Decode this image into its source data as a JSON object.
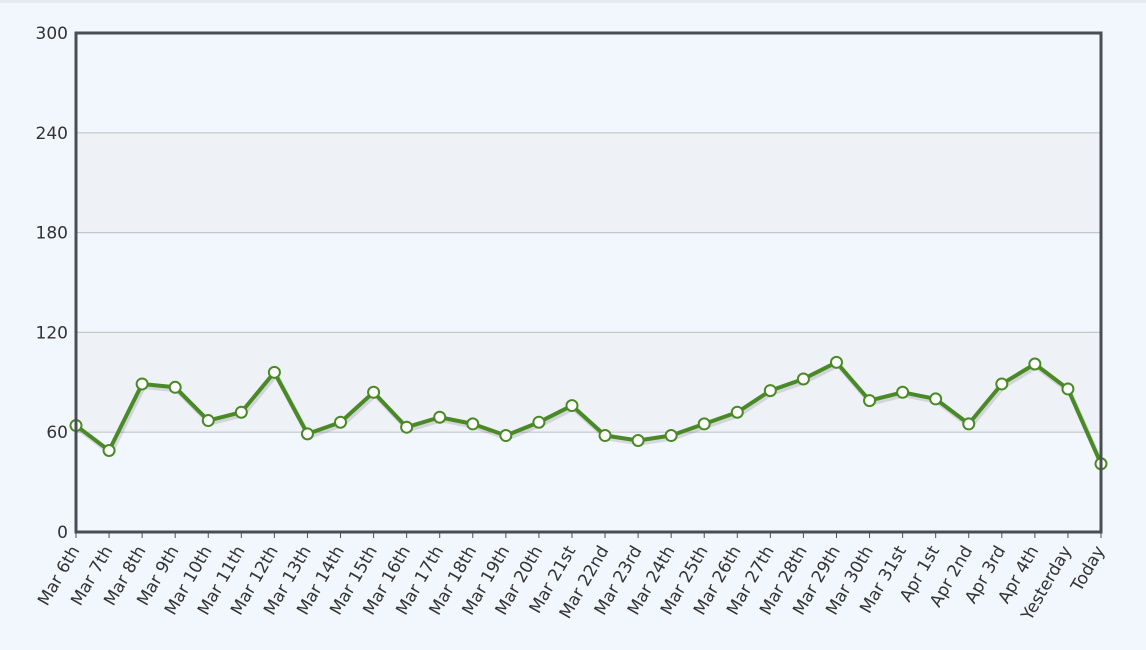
{
  "chart_data": {
    "type": "line",
    "title": "",
    "xlabel": "",
    "ylabel": "",
    "ylim": [
      0,
      300
    ],
    "yticks": [
      0,
      60,
      120,
      180,
      240,
      300
    ],
    "grid": true,
    "legend": "none",
    "categories": [
      "Mar 6th",
      "Mar 7th",
      "Mar 8th",
      "Mar 9th",
      "Mar 10th",
      "Mar 11th",
      "Mar 12th",
      "Mar 13th",
      "Mar 14th",
      "Mar 15th",
      "Mar 16th",
      "Mar 17th",
      "Mar 18th",
      "Mar 19th",
      "Mar 20th",
      "Mar 21st",
      "Mar 22nd",
      "Mar 23rd",
      "Mar 24th",
      "Mar 25th",
      "Mar 26th",
      "Mar 27th",
      "Mar 28th",
      "Mar 29th",
      "Mar 30th",
      "Mar 31st",
      "Apr 1st",
      "Apr 2nd",
      "Apr 3rd",
      "Apr 4th",
      "Yesterday",
      "Today"
    ],
    "series": [
      {
        "values": [
          64,
          49,
          89,
          87,
          67,
          72,
          96,
          59,
          66,
          84,
          63,
          69,
          65,
          58,
          66,
          76,
          58,
          55,
          58,
          65,
          72,
          85,
          92,
          102,
          79,
          84,
          80,
          65,
          89,
          101,
          86,
          41
        ],
        "color": "#4a8a26"
      }
    ],
    "colors": {
      "band": "#eef2f6",
      "plot_bg": "#f2f7fd",
      "grid": "#c3c7cb",
      "frame": "#4a4d52",
      "marker_fill": "#ffffff"
    }
  }
}
